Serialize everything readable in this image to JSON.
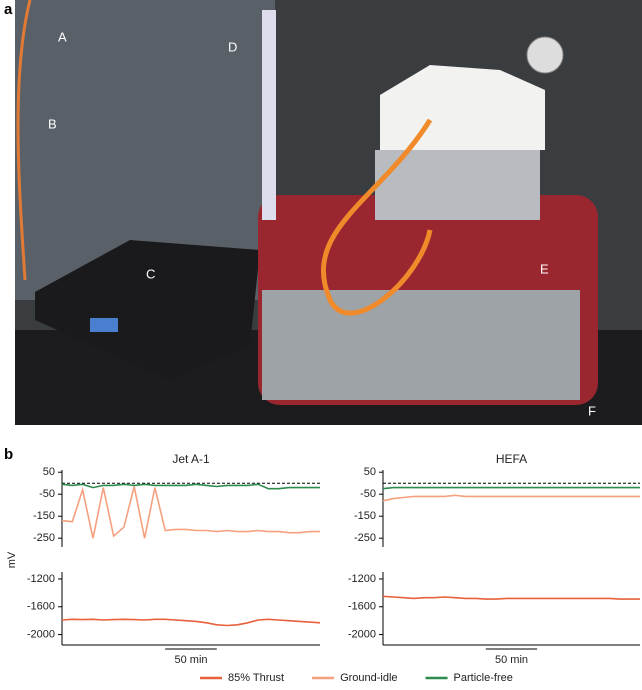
{
  "figure": {
    "panel_a": {
      "label": "a",
      "callouts": [
        "A",
        "B",
        "C",
        "D",
        "E",
        "F"
      ]
    },
    "panel_b": {
      "label": "b"
    }
  },
  "chart_data": [
    {
      "type": "line",
      "title": "Jet A-1",
      "ylabel": "mV",
      "xlabel": {
        "value": 50,
        "label": "50 min"
      },
      "x": [
        0,
        10,
        20,
        30,
        40,
        50,
        60,
        70,
        80,
        90,
        100,
        110,
        120,
        130,
        140,
        150,
        160,
        170,
        180,
        190,
        200,
        210,
        220,
        230,
        240,
        250
      ],
      "xlim": [
        0,
        250
      ],
      "ylim": [
        -290,
        60
      ],
      "yticks": [
        50,
        -50,
        -150,
        -250
      ],
      "ylim_lower": [
        -2150,
        -1100
      ],
      "yticks_lower": [
        -1200,
        -1600,
        -2000
      ],
      "reference_line": 0,
      "series": [
        {
          "name": "85% Thrust",
          "color": "#e8603c",
          "values": [
            -1790,
            -1780,
            -1785,
            -1780,
            -1790,
            -1785,
            -1780,
            -1785,
            -1790,
            -1780,
            -1780,
            -1790,
            -1800,
            -1810,
            -1830,
            -1860,
            -1870,
            -1860,
            -1830,
            -1790,
            -1780,
            -1790,
            -1800,
            -1810,
            -1820,
            -1830
          ]
        },
        {
          "name": "Ground-idle",
          "color": "#f5a07f",
          "values": [
            -170,
            -175,
            -30,
            -250,
            -20,
            -240,
            -200,
            -15,
            -250,
            -20,
            -215,
            -210,
            -210,
            -215,
            -215,
            -220,
            -215,
            -220,
            -220,
            -215,
            -220,
            -220,
            -225,
            -225,
            -220,
            -220
          ]
        },
        {
          "name": "Particle-free",
          "color": "#2e8b4e",
          "values": [
            -5,
            -10,
            -5,
            -20,
            -10,
            -10,
            -5,
            -10,
            -5,
            -10,
            -10,
            -10,
            -10,
            -5,
            -10,
            -15,
            -10,
            -10,
            -10,
            -5,
            -25,
            -25,
            -20,
            -20,
            -20,
            -20
          ]
        }
      ]
    },
    {
      "type": "line",
      "title": "HEFA",
      "xlabel": {
        "value": 50,
        "label": "50 min"
      },
      "x": [
        0,
        10,
        20,
        30,
        40,
        50,
        60,
        70,
        80,
        90,
        100,
        110,
        120,
        130,
        140,
        150,
        160,
        170,
        180,
        190,
        200,
        210,
        220,
        230,
        240,
        250
      ],
      "xlim": [
        0,
        250
      ],
      "ylim": [
        -290,
        60
      ],
      "yticks": [
        50,
        -50,
        -150,
        -250
      ],
      "ylim_lower": [
        -2150,
        -1100
      ],
      "yticks_lower": [
        -1200,
        -1600,
        -2000
      ],
      "reference_line": 0,
      "series": [
        {
          "name": "85% Thrust",
          "color": "#e8603c",
          "values": [
            -1450,
            -1460,
            -1470,
            -1480,
            -1470,
            -1470,
            -1460,
            -1470,
            -1480,
            -1480,
            -1490,
            -1490,
            -1480,
            -1480,
            -1480,
            -1480,
            -1480,
            -1480,
            -1480,
            -1480,
            -1480,
            -1480,
            -1480,
            -1490,
            -1490,
            -1490
          ]
        },
        {
          "name": "Ground-idle",
          "color": "#f5a07f",
          "values": [
            -80,
            -70,
            -65,
            -60,
            -60,
            -60,
            -60,
            -55,
            -60,
            -60,
            -60,
            -60,
            -60,
            -60,
            -60,
            -60,
            -60,
            -60,
            -60,
            -60,
            -60,
            -60,
            -60,
            -60,
            -60,
            -60
          ]
        },
        {
          "name": "Particle-free",
          "color": "#2e8b4e",
          "values": [
            -25,
            -20,
            -20,
            -20,
            -20,
            -20,
            -20,
            -20,
            -20,
            -20,
            -20,
            -20,
            -20,
            -20,
            -20,
            -20,
            -20,
            -20,
            -20,
            -20,
            -20,
            -20,
            -20,
            -20,
            -20,
            -20
          ]
        }
      ]
    }
  ]
}
